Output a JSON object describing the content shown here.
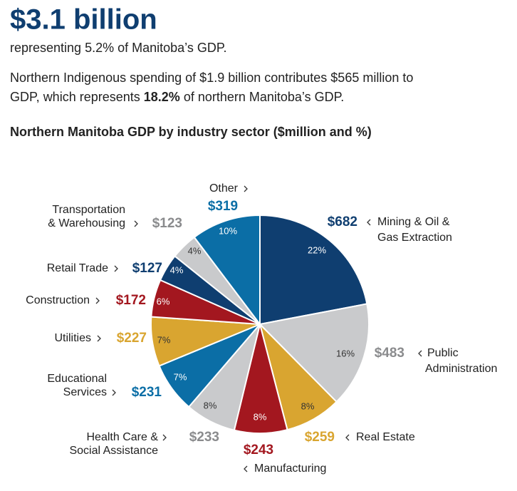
{
  "header": {
    "headline": "$3.1 billion",
    "subline": "representing 5.2% of Manitoba’s GDP.",
    "paragraph": [
      "Northern Indigenous spending of $1.9 billion contributes $565 million to",
      "GDP, which represents ",
      "18.2%",
      " of northern Manitoba’s GDP."
    ]
  },
  "chart_data": {
    "type": "pie",
    "title": "Northern Manitoba GDP by industry sector ($million and %)",
    "categories": [
      [
        "Mining & Oil &",
        "Gas Extraction"
      ],
      [
        "Public",
        "Administration"
      ],
      [
        "Real Estate"
      ],
      [
        "Manufacturing"
      ],
      [
        "Health Care &",
        "Social Assistance"
      ],
      [
        "Educational",
        "Services"
      ],
      [
        "Utilities"
      ],
      [
        "Construction"
      ],
      [
        "Retail Trade"
      ],
      [
        "Transportation",
        "& Warehousing"
      ],
      [
        "Other"
      ]
    ],
    "values": [
      682,
      483,
      259,
      243,
      233,
      231,
      227,
      172,
      127,
      123,
      319
    ],
    "value_labels": [
      "$682",
      "$483",
      "$259",
      "$243",
      "$233",
      "$231",
      "$227",
      "$172",
      "$127",
      "$123",
      "$319"
    ],
    "percent_labels": [
      "22%",
      "16%",
      "8%",
      "8%",
      "8%",
      "7%",
      "7%",
      "6%",
      "4%",
      "4%",
      "10%"
    ],
    "colors": [
      "#0f3e70",
      "#c9cacc",
      "#d9a530",
      "#a3171f",
      "#c9cacc",
      "#0b6ea6",
      "#d9a530",
      "#a3171f",
      "#0f3e70",
      "#c9cacc",
      "#0b6ea6"
    ],
    "value_label_colors": [
      "#0f3e70",
      "#8a8b8d",
      "#d9a530",
      "#a3171f",
      "#8a8b8d",
      "#0b6ea6",
      "#d9a530",
      "#a3171f",
      "#0f3e70",
      "#8a8b8d",
      "#0b6ea6"
    ],
    "percent_label_colors": [
      "#ffffff",
      "#333333",
      "#333333",
      "#ffffff",
      "#333333",
      "#ffffff",
      "#333333",
      "#ffffff",
      "#ffffff",
      "#333333",
      "#ffffff"
    ]
  }
}
